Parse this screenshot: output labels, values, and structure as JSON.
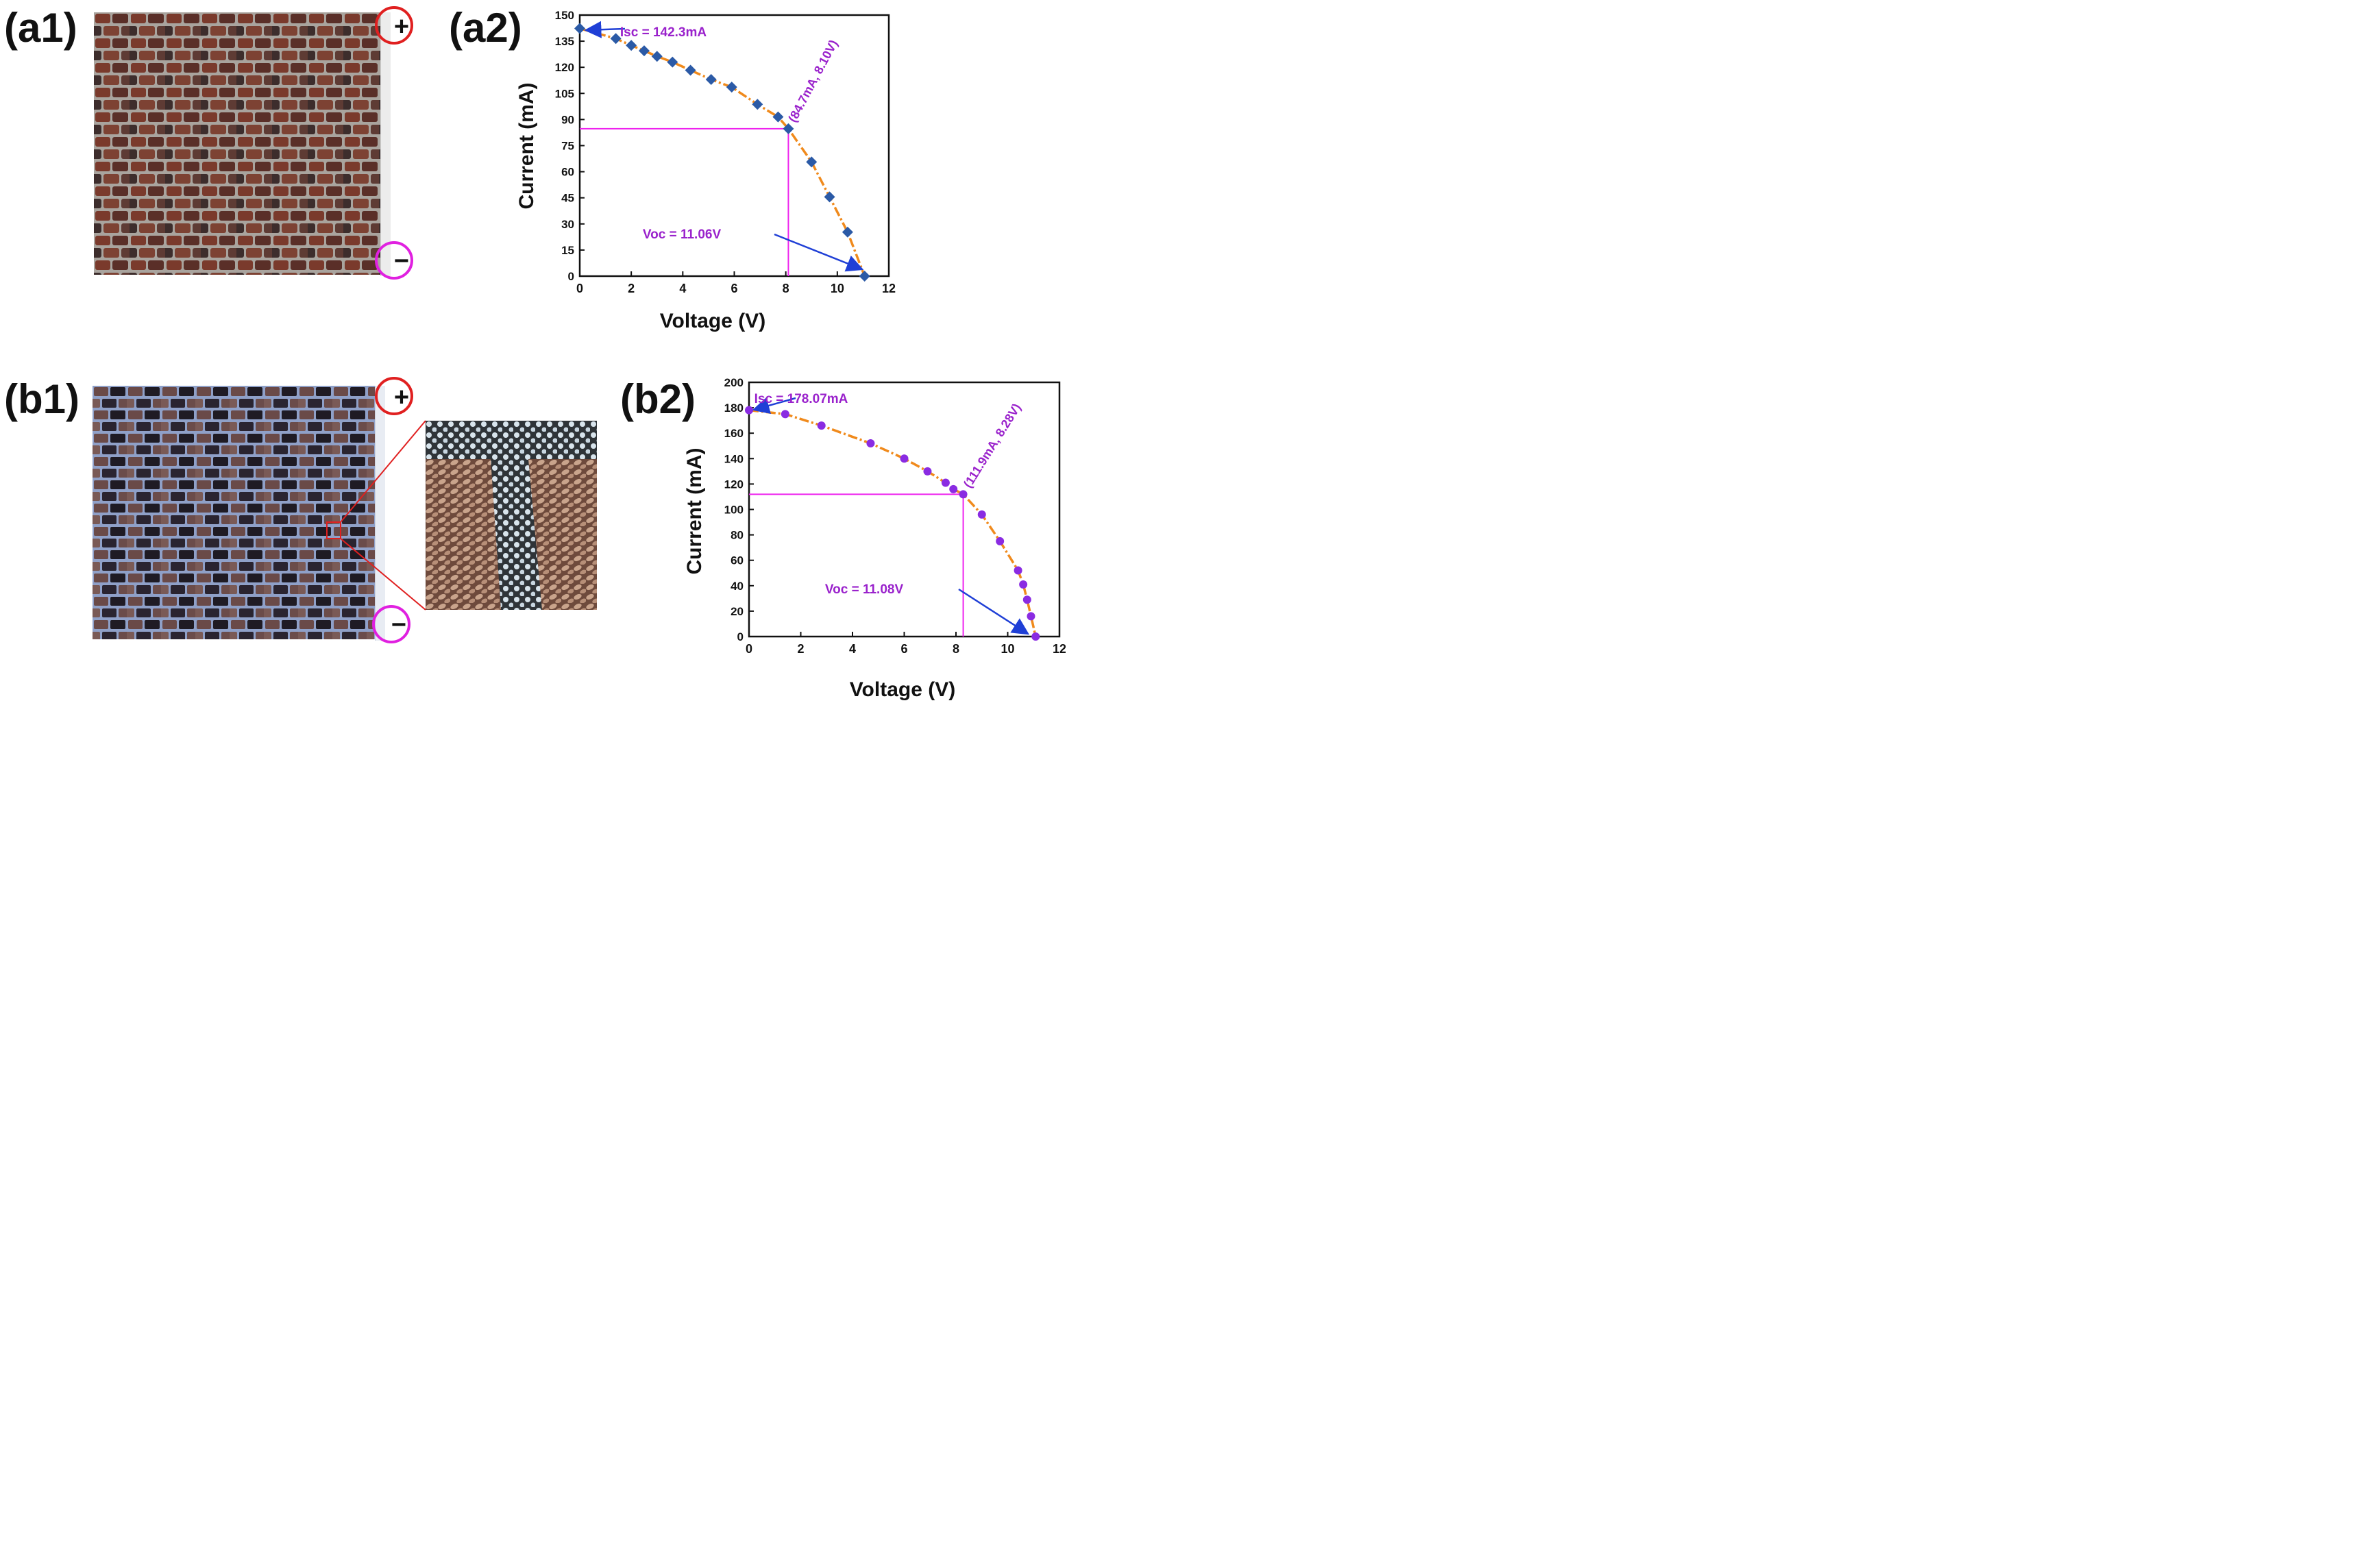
{
  "panels": {
    "a1": "(a1)",
    "a2": "(a2)",
    "b1": "(b1)",
    "b2": "(b2)"
  },
  "terminals": {
    "plus": "+",
    "minus": "−"
  },
  "colors": {
    "plus_ring": "#e02020",
    "minus_ring": "#e020e0",
    "curve": "#f08a1c",
    "a2_marker": "#2b5aa6",
    "b2_marker": "#8a2be2",
    "guide_line": "#ee22ee",
    "annotation": "#9a22cc",
    "arrow": "#1f3fd6",
    "zoom_box": "#e02020"
  },
  "icons": {
    "photo": "brick-wall-solar-module-photo",
    "zoom": "magnified-detail-photo"
  },
  "chart_data": [
    {
      "id": "a2",
      "type": "scatter",
      "marker": "diamond",
      "xlabel": "Voltage (V)",
      "ylabel": "Current (mA)",
      "xlim": [
        0,
        12
      ],
      "ylim": [
        0,
        150
      ],
      "xticks": [
        0,
        2,
        4,
        6,
        8,
        10,
        12
      ],
      "yticks": [
        0,
        15,
        30,
        45,
        60,
        75,
        90,
        105,
        120,
        135,
        150
      ],
      "x": [
        0.0,
        1.4,
        2.0,
        2.5,
        3.0,
        3.6,
        4.3,
        5.1,
        5.9,
        6.9,
        7.7,
        8.1,
        9.0,
        9.7,
        10.4,
        11.06
      ],
      "y": [
        142.3,
        136.5,
        132.6,
        129.5,
        126.3,
        123.0,
        118.3,
        113.0,
        108.6,
        98.7,
        91.5,
        84.7,
        65.6,
        45.5,
        25.3,
        0.0
      ],
      "mpp": {
        "x": 8.1,
        "y": 84.7
      },
      "annotations": {
        "isc": "Isc = 142.3mA",
        "voc": "Voc = 11.06V",
        "mpp": "(84.7mA, 8.10V)"
      }
    },
    {
      "id": "b2",
      "type": "scatter",
      "marker": "circle",
      "xlabel": "Voltage (V)",
      "ylabel": "Current (mA)",
      "xlim": [
        0,
        12
      ],
      "ylim": [
        0,
        200
      ],
      "xticks": [
        0,
        2,
        4,
        6,
        8,
        10,
        12
      ],
      "yticks": [
        0,
        20,
        40,
        60,
        80,
        100,
        120,
        140,
        160,
        180,
        200
      ],
      "x": [
        0.0,
        1.4,
        2.8,
        4.7,
        6.0,
        6.9,
        7.6,
        7.9,
        8.28,
        9.0,
        9.7,
        10.4,
        10.6,
        10.75,
        10.9,
        11.08
      ],
      "y": [
        178.07,
        175.0,
        166.0,
        152.0,
        140.0,
        130.0,
        121.0,
        116.0,
        111.9,
        96.0,
        75.0,
        52.0,
        41.0,
        29.0,
        16.0,
        0.0
      ],
      "mpp": {
        "x": 8.28,
        "y": 111.9
      },
      "annotations": {
        "isc": "Isc = 178.07mA",
        "voc": "Voc = 11.08V",
        "mpp": "(111.9mA, 8.28V)"
      }
    }
  ]
}
